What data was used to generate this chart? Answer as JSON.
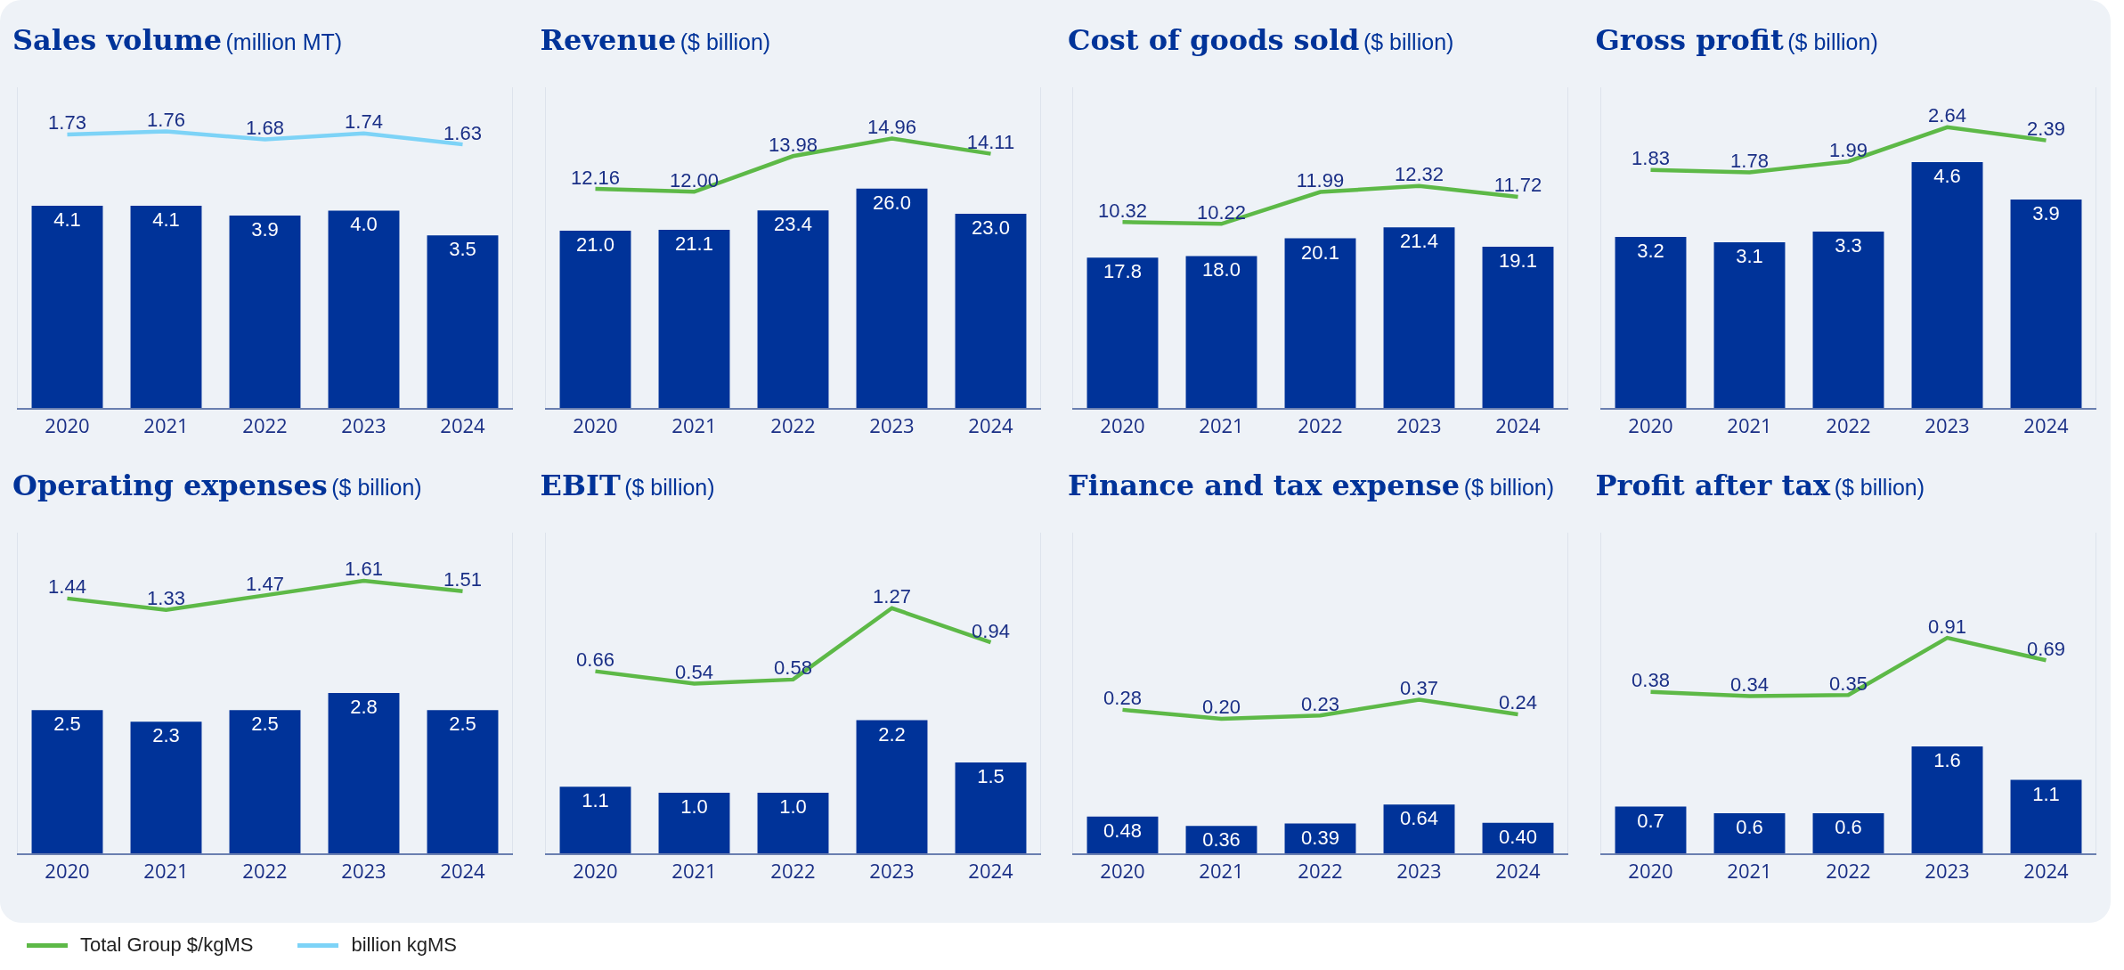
{
  "chart_data": [
    {
      "type": "bar",
      "title": "Sales volume",
      "subtitle": "(million MT)",
      "categories": [
        "2020",
        "2021",
        "2022",
        "2023",
        "2024"
      ],
      "ylim": [
        0,
        6.5
      ],
      "y2lim": [
        -1,
        2.2
      ],
      "tick_labels": "x",
      "legend": "bottom",
      "series": [
        {
          "color": "#003399",
          "values": [
            4.1,
            4.1,
            3.9,
            4.0,
            3.5
          ],
          "value_labels": [
            "4.1",
            "4.1",
            "3.9",
            "4.0",
            "3.5"
          ]
        },
        {
          "type": "line",
          "axis": "y2",
          "name": "billion kgMS",
          "color": "#7dd3f7",
          "values": [
            1.73,
            1.76,
            1.68,
            1.74,
            1.63
          ],
          "value_labels": [
            "1.73",
            "1.76",
            "1.68",
            "1.74",
            "1.63"
          ]
        }
      ]
    },
    {
      "type": "bar",
      "title": "Revenue",
      "subtitle": "($ billion)",
      "categories": [
        "2020",
        "2021",
        "2022",
        "2023",
        "2024"
      ],
      "ylim": [
        0,
        38
      ],
      "y2lim": [
        0,
        17.8
      ],
      "tick_labels": "x",
      "legend": "bottom",
      "series": [
        {
          "color": "#003399",
          "values": [
            21.0,
            21.1,
            23.4,
            26.0,
            23.0
          ],
          "value_labels": [
            "21.0",
            "21.1",
            "23.4",
            "26.0",
            "23.0"
          ]
        },
        {
          "type": "line",
          "axis": "y2",
          "name": "Total Group $/kgMS",
          "color": "#5db947",
          "values": [
            12.16,
            12.0,
            13.98,
            14.96,
            14.11
          ],
          "value_labels": [
            "12.16",
            "12.00",
            "13.98",
            "14.96",
            "14.11"
          ]
        }
      ]
    },
    {
      "type": "bar",
      "title": "Cost of goods sold",
      "subtitle": "($ billion)",
      "categories": [
        "2020",
        "2021",
        "2022",
        "2023",
        "2024"
      ],
      "ylim": [
        0,
        38
      ],
      "y2lim": [
        0,
        17.8
      ],
      "tick_labels": "x",
      "series": [
        {
          "color": "#003399",
          "values": [
            17.8,
            18.0,
            20.1,
            21.4,
            19.1
          ],
          "value_labels": [
            "17.8",
            "18.0",
            "20.1",
            "21.4",
            "19.1"
          ]
        },
        {
          "type": "line",
          "axis": "y2",
          "color": "#5db947",
          "values": [
            10.32,
            10.22,
            11.99,
            12.32,
            11.72
          ],
          "value_labels": [
            "10.32",
            "10.22",
            "11.99",
            "12.32",
            "11.72"
          ]
        }
      ]
    },
    {
      "type": "bar",
      "title": "Gross profit",
      "subtitle": "($ billion)",
      "categories": [
        "2020",
        "2021",
        "2022",
        "2023",
        "2024"
      ],
      "ylim": [
        0,
        6
      ],
      "y2lim": [
        -2.7,
        3.4
      ],
      "tick_labels": "x",
      "series": [
        {
          "color": "#003399",
          "values": [
            3.2,
            3.1,
            3.3,
            4.6,
            3.9
          ],
          "value_labels": [
            "3.2",
            "3.1",
            "3.3",
            "4.6",
            "3.9"
          ]
        },
        {
          "type": "line",
          "axis": "y2",
          "color": "#5db947",
          "values": [
            1.83,
            1.78,
            1.99,
            2.64,
            2.39
          ],
          "value_labels": [
            "1.83",
            "1.78",
            "1.99",
            "2.64",
            "2.39"
          ]
        }
      ]
    },
    {
      "type": "bar",
      "title": "Operating expenses",
      "subtitle": "($ billion)",
      "categories": [
        "2020",
        "2021",
        "2022",
        "2023",
        "2024"
      ],
      "ylim": [
        0,
        5.6
      ],
      "y2lim": [
        -1,
        2.07
      ],
      "tick_labels": "x",
      "series": [
        {
          "color": "#003399",
          "values": [
            2.5,
            2.3,
            2.5,
            2.8,
            2.5
          ],
          "value_labels": [
            "2.5",
            "2.3",
            "2.5",
            "2.8",
            "2.5"
          ]
        },
        {
          "type": "line",
          "axis": "y2",
          "color": "#5db947",
          "values": [
            1.44,
            1.33,
            1.47,
            1.61,
            1.51
          ],
          "value_labels": [
            "1.44",
            "1.33",
            "1.47",
            "1.61",
            "1.51"
          ]
        }
      ]
    },
    {
      "type": "bar",
      "title": "EBIT",
      "subtitle": "($ billion)",
      "categories": [
        "2020",
        "2021",
        "2022",
        "2023",
        "2024"
      ],
      "ylim": [
        0,
        5.3
      ],
      "y2lim": [
        -1.1,
        2.0
      ],
      "tick_labels": "x",
      "series": [
        {
          "color": "#003399",
          "values": [
            1.1,
            1.0,
            1.0,
            2.2,
            1.5
          ],
          "value_labels": [
            "1.1",
            "1.0",
            "1.0",
            "2.2",
            "1.5"
          ]
        },
        {
          "type": "line",
          "axis": "y2",
          "color": "#5db947",
          "values": [
            0.66,
            0.54,
            0.58,
            1.27,
            0.94
          ],
          "value_labels": [
            "0.66",
            "0.54",
            "0.58",
            "1.27",
            "0.94"
          ]
        }
      ]
    },
    {
      "type": "bar",
      "title": "Finance and tax expense",
      "subtitle": "($ billion)",
      "categories": [
        "2020",
        "2021",
        "2022",
        "2023",
        "2024"
      ],
      "ylim": [
        0,
        4.2
      ],
      "y2lim": [
        -1,
        1.86
      ],
      "tick_labels": "x",
      "series": [
        {
          "color": "#003399",
          "values": [
            0.48,
            0.36,
            0.39,
            0.64,
            0.4
          ],
          "value_labels": [
            "0.48",
            "0.36",
            "0.39",
            "0.64",
            "0.40"
          ]
        },
        {
          "type": "line",
          "axis": "y2",
          "color": "#5db947",
          "values": [
            0.28,
            0.2,
            0.23,
            0.37,
            0.24
          ],
          "value_labels": [
            "0.28",
            "0.20",
            "0.23",
            "0.37",
            "0.24"
          ]
        }
      ]
    },
    {
      "type": "bar",
      "title": "Profit after tax",
      "subtitle": "($ billion)",
      "categories": [
        "2020",
        "2021",
        "2022",
        "2023",
        "2024"
      ],
      "ylim": [
        0,
        4.8
      ],
      "y2lim": [
        -1.2,
        1.94
      ],
      "tick_labels": "x",
      "series": [
        {
          "color": "#003399",
          "values": [
            0.7,
            0.6,
            0.6,
            1.6,
            1.1
          ],
          "value_labels": [
            "0.7",
            "0.6",
            "0.6",
            "1.6",
            "1.1"
          ]
        },
        {
          "type": "line",
          "axis": "y2",
          "color": "#5db947",
          "values": [
            0.38,
            0.34,
            0.35,
            0.91,
            0.69
          ],
          "value_labels": [
            "0.38",
            "0.34",
            "0.35",
            "0.91",
            "0.69"
          ]
        }
      ]
    }
  ]
}
